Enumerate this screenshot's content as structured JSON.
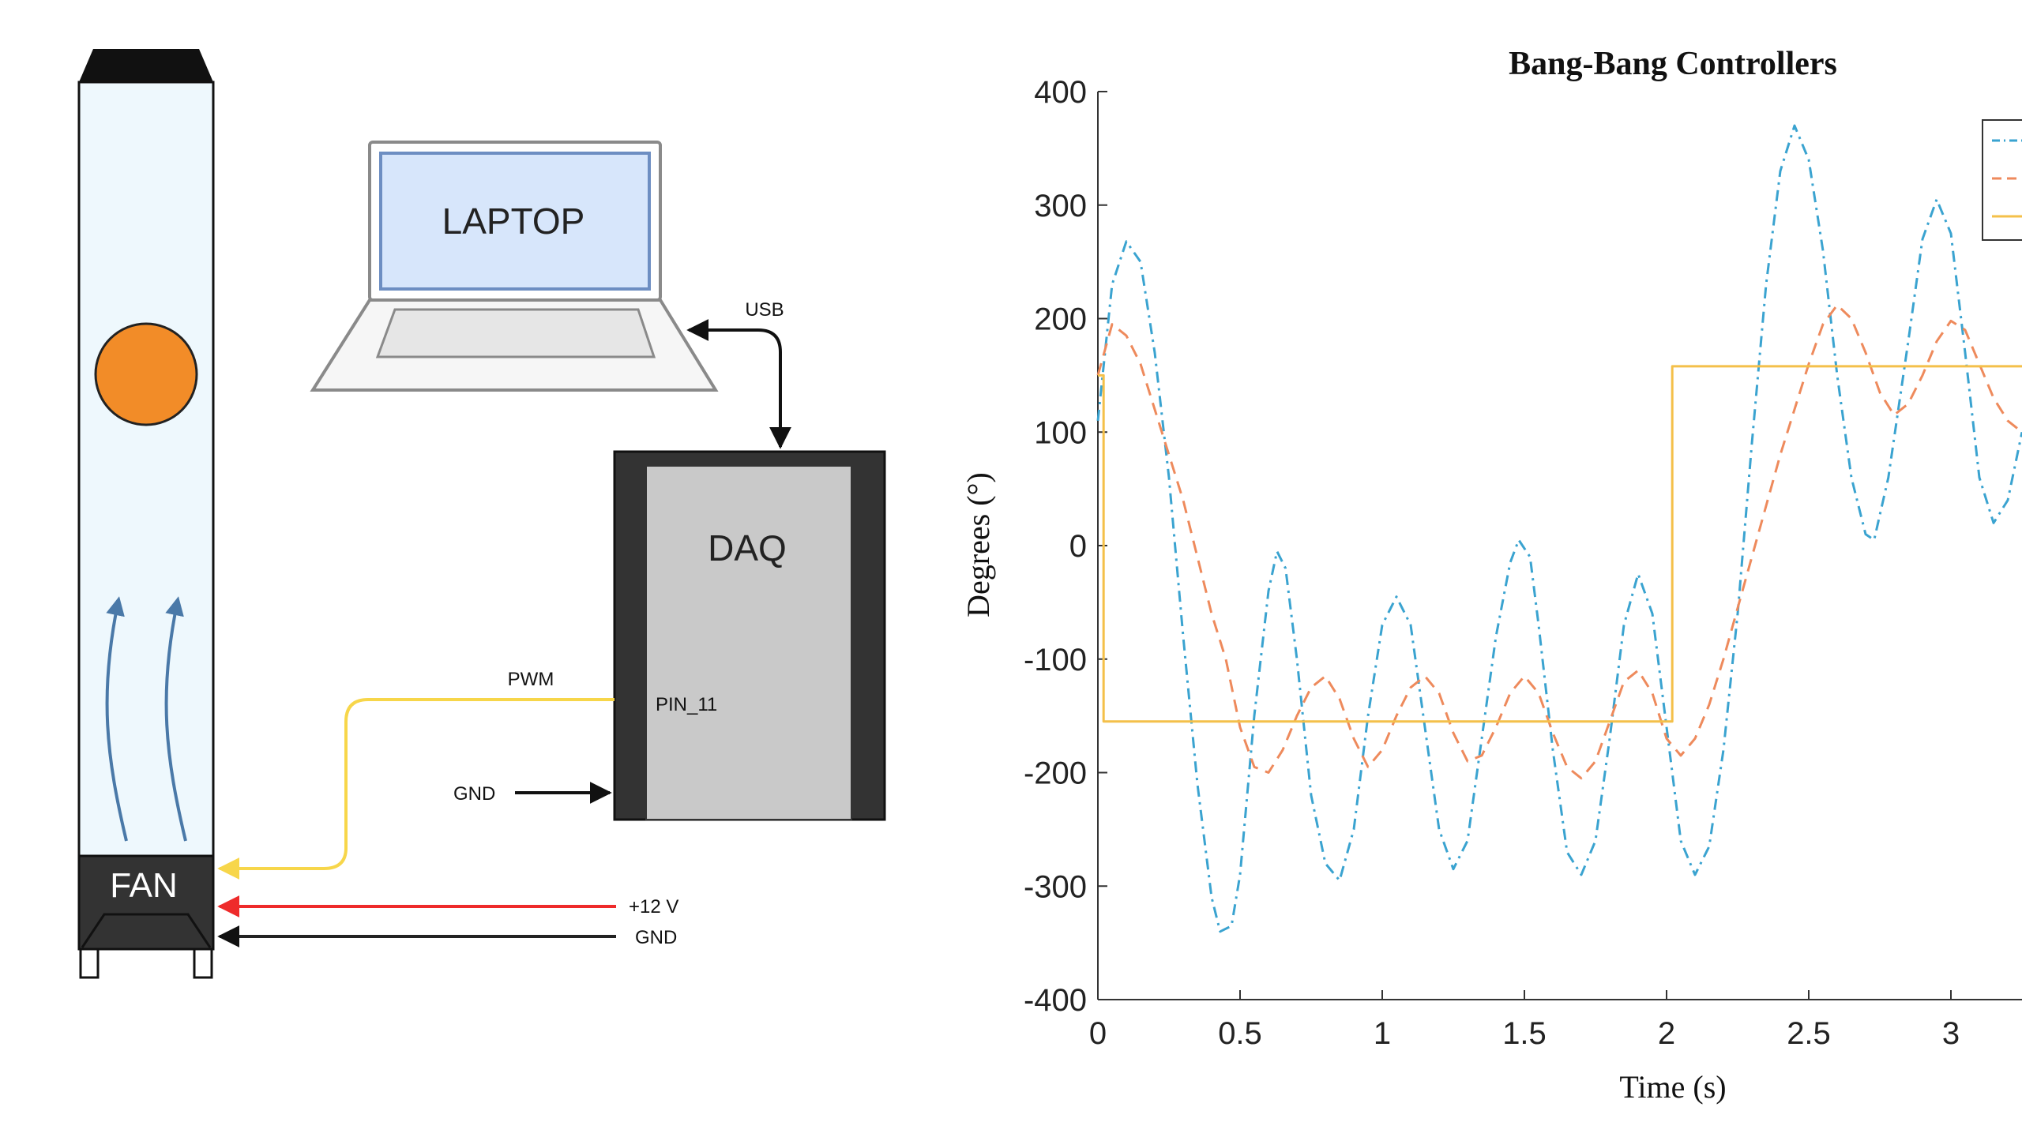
{
  "diagram": {
    "laptop_label": "LAPTOP",
    "daq_label": "DAQ",
    "fan_label": "FAN",
    "usb_label": "USB",
    "pwm_label": "PWM",
    "pin_label": "PIN_11",
    "gnd_daq_label": "GND",
    "v12_label": "+12 V",
    "gnd_fan_label": "GND",
    "colors": {
      "pwm_wire": "#f7d64a",
      "power_wire": "#ee2b2b",
      "ground_wire": "#222222",
      "ball": "#f28c28",
      "tube": "#eef8fd",
      "airflow": "#4a79a8",
      "laptop_screen": "#d7e6fb"
    }
  },
  "chart_data": {
    "type": "line",
    "title": "Bang-Bang Controllers",
    "xlabel": "Time (s)",
    "ylabel": "Degrees (°)",
    "xlim": [
      0,
      3.25
    ],
    "ylim": [
      -400,
      400
    ],
    "x_ticks": [
      "0",
      "0.5",
      "1",
      "1.5",
      "2",
      "2.5",
      "3"
    ],
    "y_ticks": [
      "400",
      "300",
      "200",
      "100",
      "0",
      "-100",
      "-200",
      "-300",
      "-400"
    ],
    "legend_position": "top-right (cut off)",
    "grid": false,
    "series": [
      {
        "style": "dash-dot",
        "color": "#3aa3d0",
        "points": [
          [
            0,
            110
          ],
          [
            0.05,
            230
          ],
          [
            0.1,
            268
          ],
          [
            0.15,
            250
          ],
          [
            0.2,
            170
          ],
          [
            0.25,
            60
          ],
          [
            0.3,
            -80
          ],
          [
            0.35,
            -210
          ],
          [
            0.4,
            -310
          ],
          [
            0.43,
            -340
          ],
          [
            0.47,
            -335
          ],
          [
            0.5,
            -290
          ],
          [
            0.55,
            -150
          ],
          [
            0.6,
            -40
          ],
          [
            0.63,
            -5
          ],
          [
            0.66,
            -20
          ],
          [
            0.7,
            -100
          ],
          [
            0.75,
            -220
          ],
          [
            0.8,
            -280
          ],
          [
            0.85,
            -295
          ],
          [
            0.9,
            -250
          ],
          [
            0.95,
            -150
          ],
          [
            1.0,
            -70
          ],
          [
            1.05,
            -45
          ],
          [
            1.1,
            -70
          ],
          [
            1.15,
            -160
          ],
          [
            1.2,
            -250
          ],
          [
            1.25,
            -285
          ],
          [
            1.3,
            -260
          ],
          [
            1.35,
            -170
          ],
          [
            1.4,
            -80
          ],
          [
            1.45,
            -15
          ],
          [
            1.48,
            5
          ],
          [
            1.52,
            -10
          ],
          [
            1.55,
            -70
          ],
          [
            1.6,
            -180
          ],
          [
            1.65,
            -270
          ],
          [
            1.7,
            -290
          ],
          [
            1.75,
            -260
          ],
          [
            1.8,
            -170
          ],
          [
            1.85,
            -70
          ],
          [
            1.9,
            -25
          ],
          [
            1.95,
            -60
          ],
          [
            2.0,
            -160
          ],
          [
            2.05,
            -260
          ],
          [
            2.1,
            -290
          ],
          [
            2.15,
            -265
          ],
          [
            2.2,
            -180
          ],
          [
            2.25,
            -60
          ],
          [
            2.3,
            90
          ],
          [
            2.35,
            230
          ],
          [
            2.4,
            330
          ],
          [
            2.45,
            370
          ],
          [
            2.5,
            340
          ],
          [
            2.55,
            260
          ],
          [
            2.6,
            150
          ],
          [
            2.65,
            60
          ],
          [
            2.7,
            10
          ],
          [
            2.73,
            5
          ],
          [
            2.78,
            60
          ],
          [
            2.85,
            180
          ],
          [
            2.9,
            270
          ],
          [
            2.95,
            305
          ],
          [
            3.0,
            275
          ],
          [
            3.05,
            170
          ],
          [
            3.1,
            60
          ],
          [
            3.15,
            20
          ],
          [
            3.2,
            40
          ],
          [
            3.25,
            100
          ]
        ]
      },
      {
        "style": "dashed",
        "color": "#ee8a5c",
        "points": [
          [
            0,
            150
          ],
          [
            0.05,
            195
          ],
          [
            0.1,
            185
          ],
          [
            0.15,
            160
          ],
          [
            0.2,
            120
          ],
          [
            0.3,
            40
          ],
          [
            0.35,
            -10
          ],
          [
            0.4,
            -60
          ],
          [
            0.45,
            -100
          ],
          [
            0.5,
            -160
          ],
          [
            0.55,
            -195
          ],
          [
            0.6,
            -200
          ],
          [
            0.65,
            -180
          ],
          [
            0.7,
            -150
          ],
          [
            0.75,
            -125
          ],
          [
            0.8,
            -115
          ],
          [
            0.85,
            -135
          ],
          [
            0.9,
            -170
          ],
          [
            0.95,
            -195
          ],
          [
            1.0,
            -180
          ],
          [
            1.05,
            -150
          ],
          [
            1.1,
            -125
          ],
          [
            1.15,
            -115
          ],
          [
            1.2,
            -130
          ],
          [
            1.25,
            -165
          ],
          [
            1.3,
            -190
          ],
          [
            1.35,
            -185
          ],
          [
            1.4,
            -160
          ],
          [
            1.45,
            -130
          ],
          [
            1.5,
            -115
          ],
          [
            1.55,
            -130
          ],
          [
            1.6,
            -165
          ],
          [
            1.65,
            -195
          ],
          [
            1.7,
            -205
          ],
          [
            1.75,
            -190
          ],
          [
            1.8,
            -155
          ],
          [
            1.85,
            -120
          ],
          [
            1.9,
            -110
          ],
          [
            1.95,
            -130
          ],
          [
            2.0,
            -170
          ],
          [
            2.05,
            -185
          ],
          [
            2.1,
            -170
          ],
          [
            2.15,
            -140
          ],
          [
            2.2,
            -100
          ],
          [
            2.3,
            -10
          ],
          [
            2.4,
            80
          ],
          [
            2.5,
            160
          ],
          [
            2.55,
            195
          ],
          [
            2.6,
            212
          ],
          [
            2.65,
            200
          ],
          [
            2.7,
            170
          ],
          [
            2.75,
            135
          ],
          [
            2.8,
            115
          ],
          [
            2.85,
            125
          ],
          [
            2.9,
            150
          ],
          [
            2.95,
            180
          ],
          [
            3.0,
            198
          ],
          [
            3.05,
            190
          ],
          [
            3.1,
            160
          ],
          [
            3.15,
            130
          ],
          [
            3.2,
            110
          ],
          [
            3.25,
            100
          ]
        ]
      },
      {
        "style": "solid",
        "color": "#f4c04a",
        "points": [
          [
            0,
            150
          ],
          [
            0.02,
            150
          ],
          [
            0.02,
            -155
          ],
          [
            2.02,
            -155
          ],
          [
            2.02,
            158
          ],
          [
            3.25,
            158
          ]
        ]
      }
    ]
  }
}
